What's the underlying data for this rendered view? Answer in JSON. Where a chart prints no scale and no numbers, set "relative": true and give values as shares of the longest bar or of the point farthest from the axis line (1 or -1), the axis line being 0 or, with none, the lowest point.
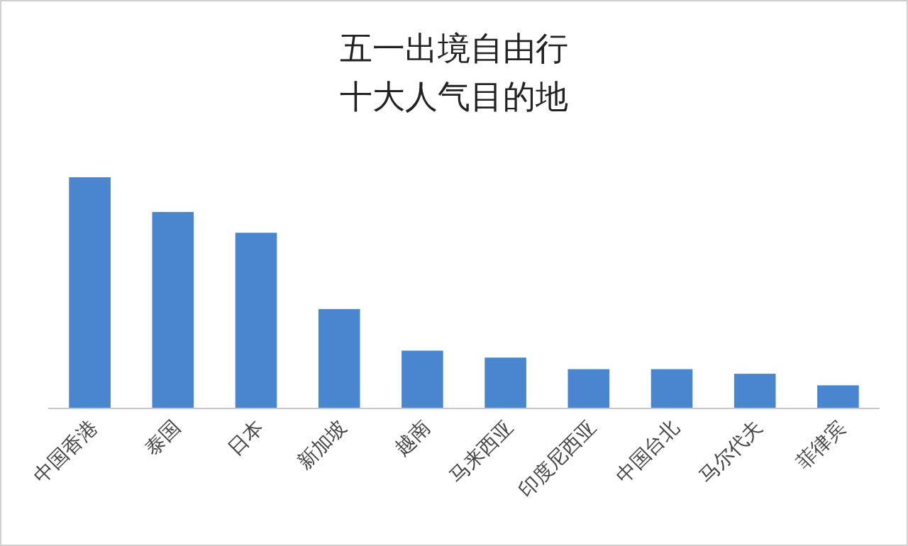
{
  "chart_data": {
    "type": "bar",
    "title": "五一出境自由行十大人气目的地",
    "relative": true,
    "color": "#4a86cf",
    "categories": [
      "中国香港",
      "泰国",
      "日本",
      "新加坡",
      "越南",
      "马来西亚",
      "印度尼西亚",
      "中国台北",
      "马尔代夫",
      "菲律宾"
    ],
    "values": [
      1,
      0.85,
      0.76,
      0.43,
      0.25,
      0.22,
      0.17,
      0.17,
      0.15,
      0.1
    ]
  }
}
